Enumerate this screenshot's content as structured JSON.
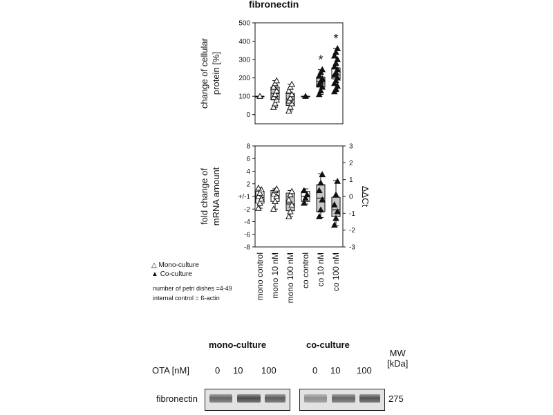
{
  "figure": {
    "title": "fibronectin",
    "legend": [
      {
        "symbol": "△",
        "label": "Mono-culture"
      },
      {
        "symbol": "▲",
        "label": "Co-culture"
      }
    ],
    "notes": [
      "number of petri dishes =4-49",
      "internal control = ß-actin"
    ]
  },
  "chart_data": [
    {
      "type": "box",
      "ylabel": [
        "change of cellular",
        "protein [%]"
      ],
      "ylim": [
        -50,
        500
      ],
      "yticks": [
        0,
        100,
        200,
        300,
        400,
        500
      ],
      "categories": [
        "mono control",
        "mono 10 nM",
        "mono 100 nM",
        "co control",
        "co 10 nM",
        "co 100 nM"
      ],
      "significance": [
        "",
        "",
        "",
        "",
        "*",
        "*"
      ],
      "boxes": [
        {
          "q1": 100,
          "median": 100,
          "q3": 100,
          "whislo": 100,
          "whishi": 100,
          "points": [
            100
          ],
          "marker": "open",
          "fill": "#ffffff"
        },
        {
          "q1": 80,
          "median": 115,
          "q3": 150,
          "whislo": 40,
          "whishi": 185,
          "points": [
            40,
            60,
            80,
            95,
            110,
            130,
            150,
            170,
            185
          ],
          "marker": "open",
          "fill": "#c8c8c8"
        },
        {
          "q1": 50,
          "median": 85,
          "q3": 115,
          "whislo": 20,
          "whishi": 165,
          "points": [
            20,
            40,
            60,
            75,
            90,
            110,
            130,
            150,
            165
          ],
          "marker": "open",
          "fill": "#c8c8c8"
        },
        {
          "q1": 100,
          "median": 100,
          "q3": 100,
          "whislo": 100,
          "whishi": 100,
          "points": [
            100
          ],
          "marker": "filled",
          "fill": "#ffffff"
        },
        {
          "q1": 150,
          "median": 180,
          "q3": 205,
          "whislo": 110,
          "whishi": 245,
          "points": [
            110,
            130,
            150,
            165,
            180,
            195,
            210,
            230,
            245
          ],
          "marker": "filled",
          "fill": "#c8c8c8"
        },
        {
          "q1": 195,
          "median": 215,
          "q3": 255,
          "whislo": 125,
          "whishi": 360,
          "points": [
            125,
            140,
            155,
            170,
            185,
            200,
            215,
            230,
            245,
            260,
            280,
            300,
            320,
            340,
            360
          ],
          "marker": "filled",
          "fill": "#ffffff"
        }
      ]
    },
    {
      "type": "box",
      "ylabel": [
        "fold change of",
        "mRNA amount"
      ],
      "y2label": "ΔΔCt",
      "ylim": [
        -8,
        8
      ],
      "ytick_labels": [
        "-8",
        "-6",
        "-4",
        "-2",
        "+/-1",
        "2",
        "4",
        "6",
        "8"
      ],
      "y2lim": [
        -3,
        3
      ],
      "y2ticks": [
        -3,
        -2,
        -1,
        0,
        1,
        2,
        3
      ],
      "y2tick_labels": [
        "-3",
        "-2",
        "-1",
        "0",
        "1",
        "2",
        "3"
      ],
      "categories": [
        "mono control",
        "mono 10 nM",
        "mono 100 nM",
        "co control",
        "co 10 nM",
        "co 100 nM"
      ],
      "boxes": [
        {
          "q1": -0.4,
          "median": -0.05,
          "q3": 0.3,
          "whislo": -0.7,
          "whishi": 0.5,
          "points": [
            -0.7,
            -0.4,
            -0.15,
            0.0,
            0.2,
            0.4,
            0.5
          ],
          "marker": "open",
          "fill": "#ffffff"
        },
        {
          "q1": -0.3,
          "median": 0.05,
          "q3": 0.35,
          "whislo": -0.75,
          "whishi": 0.45,
          "points": [
            -0.75,
            -0.3,
            0.0,
            0.15,
            0.35,
            0.45
          ],
          "marker": "open",
          "fill": "#ffffff"
        },
        {
          "q1": -0.85,
          "median": -0.45,
          "q3": 0.2,
          "whislo": -1.2,
          "whishi": 0.35,
          "points": [
            -1.2,
            -0.9,
            -0.5,
            -0.2,
            0.1,
            0.3
          ],
          "marker": "open",
          "fill": "#c8c8c8"
        },
        {
          "q1": -0.3,
          "median": 0.0,
          "q3": 0.3,
          "whislo": -0.45,
          "whishi": 0.45,
          "points": [
            -0.4,
            -0.1,
            0.1,
            0.35
          ],
          "marker": "filled",
          "fill": "#ffffff"
        },
        {
          "q1": -0.9,
          "median": -0.1,
          "q3": 0.7,
          "whislo": -1.25,
          "whishi": 1.35,
          "points": [
            -1.2,
            -0.8,
            -0.2,
            0.35,
            0.8,
            1.3
          ],
          "marker": "filled",
          "fill": "#c8c8c8"
        },
        {
          "q1": -1.2,
          "median": -0.8,
          "q3": -0.05,
          "whislo": -1.75,
          "whishi": 0.95,
          "points": [
            -1.7,
            -1.3,
            -0.9,
            -0.5,
            0.1,
            0.9
          ],
          "marker": "filled",
          "fill": "#c8c8c8"
        }
      ]
    }
  ],
  "western_blot": {
    "group_labels": [
      "mono-culture",
      "co-culture"
    ],
    "mw_label": [
      "MW",
      "[kDa]"
    ],
    "ota_label": "OTA [nM]",
    "lane_labels": [
      "0",
      "10",
      "100",
      "0",
      "10",
      "100"
    ],
    "row_label": "fibronectin",
    "mw_value": "275",
    "band_intensity": [
      0.75,
      0.9,
      0.8,
      0.5,
      0.75,
      0.85
    ]
  }
}
